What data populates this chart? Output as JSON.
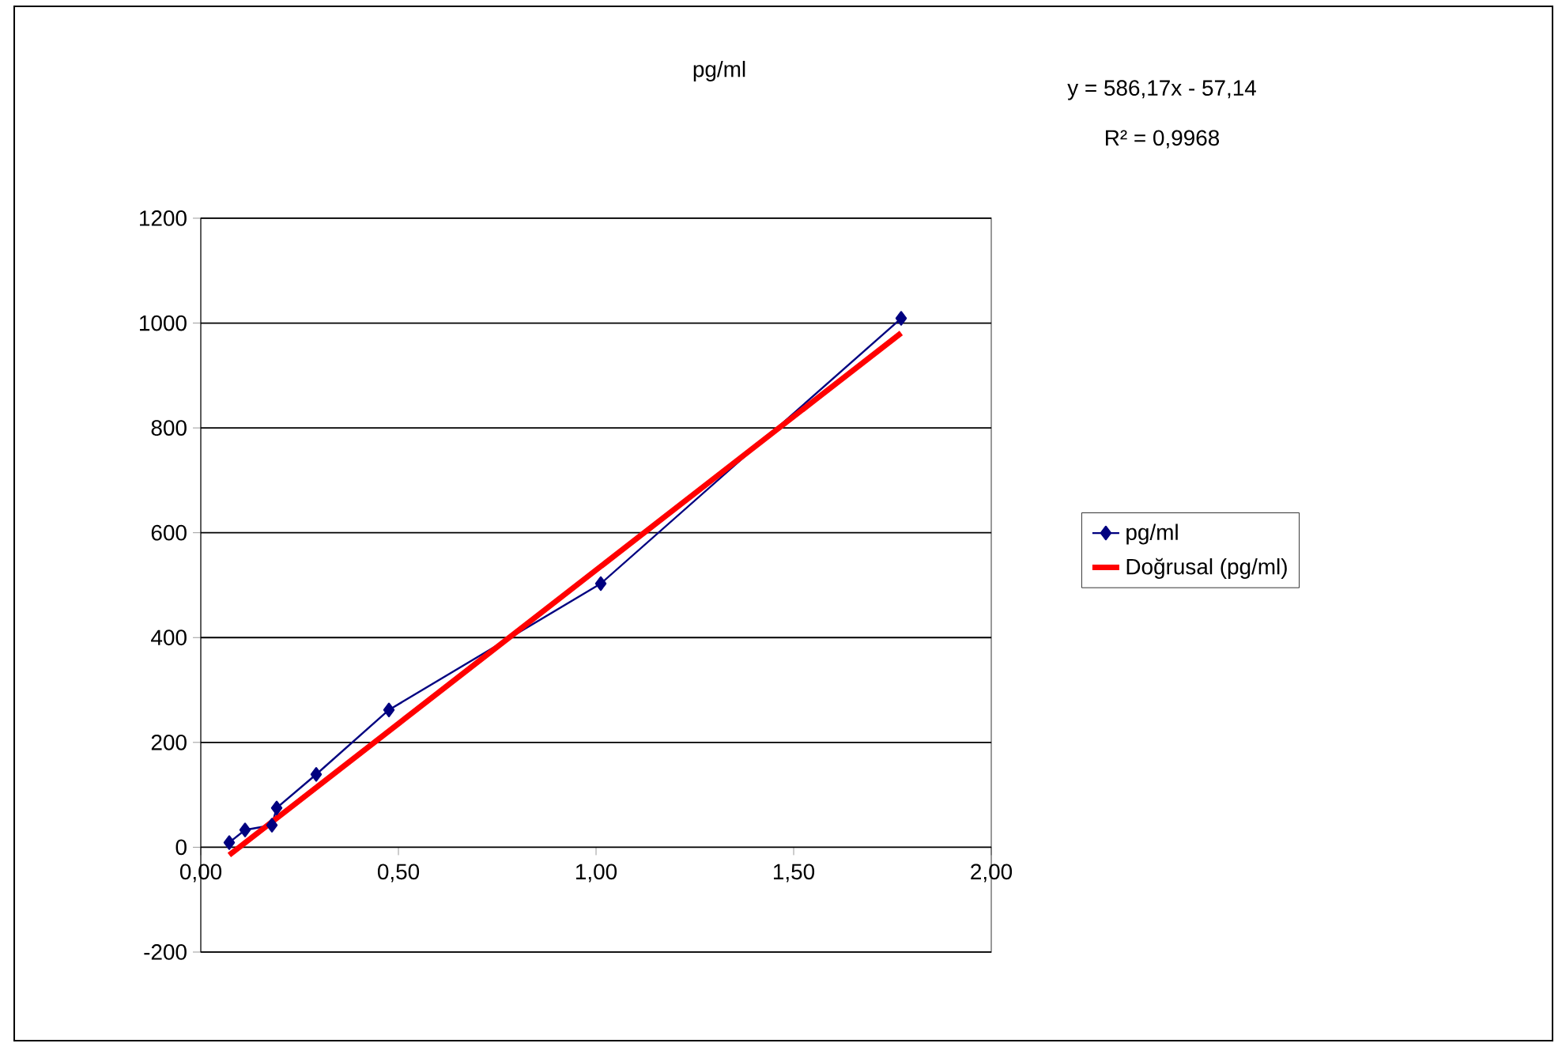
{
  "chart_data": {
    "type": "line",
    "title": "pg/ml",
    "annotations": [
      "y = 586,17x  - 57,14",
      "R² = 0,9968"
    ],
    "series": [
      {
        "name": "pg/ml",
        "color": "#000080",
        "marker": "diamond",
        "x": [
          0.072,
          0.112,
          0.18,
          0.192,
          0.292,
          0.476,
          1.012,
          1.772
        ],
        "values": [
          9,
          33,
          42,
          75,
          139,
          262,
          503,
          1009
        ]
      },
      {
        "name": "Doğrusal (pg/ml)",
        "color": "#ff0000",
        "marker": "none",
        "x": [
          0.072,
          1.772
        ],
        "values": [
          -15,
          981
        ]
      }
    ],
    "xlim": [
      0,
      2
    ],
    "xticks": [
      {
        "value": 0,
        "label": "0,00"
      },
      {
        "value": 0.5,
        "label": "0,50"
      },
      {
        "value": 1,
        "label": "1,00"
      },
      {
        "value": 1.5,
        "label": "1,50"
      },
      {
        "value": 2,
        "label": "2,00"
      }
    ],
    "ylim": [
      -200,
      1200
    ],
    "yticks": [
      -200,
      0,
      200,
      400,
      600,
      800,
      1000,
      1200
    ],
    "grid": "y",
    "legend": "right"
  }
}
